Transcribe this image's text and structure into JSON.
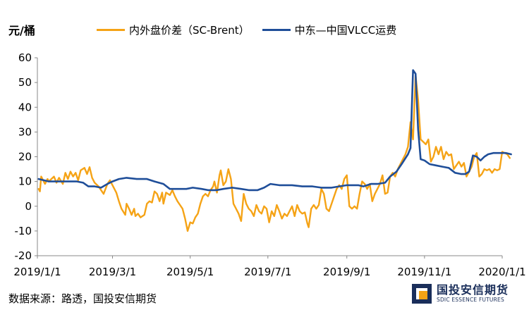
{
  "chart_data": {
    "type": "line",
    "unit_label": "元/桶",
    "ylim": [
      -20,
      60
    ],
    "yticks": [
      "-20",
      "-10",
      "0",
      "10",
      "20",
      "30",
      "40",
      "50",
      "60"
    ],
    "xlim": [
      "2019-01-01",
      "2020-01-01"
    ],
    "xticks": [
      {
        "date": "2019-01-01",
        "label": "2019/1/1"
      },
      {
        "date": "2019-03-01",
        "label": "2019/3/1"
      },
      {
        "date": "2019-05-01",
        "label": "2019/5/1"
      },
      {
        "date": "2019-07-01",
        "label": "2019/7/1"
      },
      {
        "date": "2019-09-01",
        "label": "2019/9/1"
      },
      {
        "date": "2019-11-01",
        "label": "2019/11/1"
      },
      {
        "date": "2020-01-01",
        "label": "2020/1/1"
      }
    ],
    "grid": false,
    "legend_position": "top",
    "series": [
      {
        "name": "内外盘价差（SC-Brent）",
        "color": "#F5A316",
        "points": [
          [
            "2019-01-02",
            7.0
          ],
          [
            "2019-01-03",
            6.0
          ],
          [
            "2019-01-04",
            12.0
          ],
          [
            "2019-01-07",
            9.0
          ],
          [
            "2019-01-09",
            11.0
          ],
          [
            "2019-01-10",
            10.0
          ],
          [
            "2019-01-14",
            12.0
          ],
          [
            "2019-01-16",
            9.5
          ],
          [
            "2019-01-18",
            11.5
          ],
          [
            "2019-01-21",
            9.0
          ],
          [
            "2019-01-23",
            13.5
          ],
          [
            "2019-01-25",
            11.0
          ],
          [
            "2019-01-27",
            14.0
          ],
          [
            "2019-01-29",
            12.0
          ],
          [
            "2019-01-31",
            13.5
          ],
          [
            "2019-02-02",
            10.5
          ],
          [
            "2019-02-04",
            14.5
          ],
          [
            "2019-02-07",
            15.5
          ],
          [
            "2019-02-09",
            13.0
          ],
          [
            "2019-02-11",
            15.8
          ],
          [
            "2019-02-13",
            11.5
          ],
          [
            "2019-02-15",
            9.5
          ],
          [
            "2019-02-18",
            8.0
          ],
          [
            "2019-02-20",
            6.5
          ],
          [
            "2019-02-22",
            5.0
          ],
          [
            "2019-02-25",
            9.0
          ],
          [
            "2019-02-27",
            10.5
          ],
          [
            "2019-03-01",
            8.5
          ],
          [
            "2019-03-04",
            5.5
          ],
          [
            "2019-03-06",
            2.0
          ],
          [
            "2019-03-08",
            -1.0
          ],
          [
            "2019-03-11",
            -3.5
          ],
          [
            "2019-03-12",
            1.0
          ],
          [
            "2019-03-14",
            -1.0
          ],
          [
            "2019-03-16",
            -3.5
          ],
          [
            "2019-03-18",
            -1.0
          ],
          [
            "2019-03-19",
            -4.0
          ],
          [
            "2019-03-21",
            -3.0
          ],
          [
            "2019-03-23",
            -4.5
          ],
          [
            "2019-03-26",
            -3.5
          ],
          [
            "2019-03-28",
            1.0
          ],
          [
            "2019-03-30",
            2.0
          ],
          [
            "2019-04-01",
            1.5
          ],
          [
            "2019-04-03",
            6.0
          ],
          [
            "2019-04-05",
            5.0
          ],
          [
            "2019-04-07",
            2.0
          ],
          [
            "2019-04-09",
            5.5
          ],
          [
            "2019-04-10",
            1.0
          ],
          [
            "2019-04-12",
            5.5
          ],
          [
            "2019-04-15",
            4.5
          ],
          [
            "2019-04-17",
            6.5
          ],
          [
            "2019-04-19",
            4.0
          ],
          [
            "2019-04-21",
            2.0
          ],
          [
            "2019-04-23",
            0.5
          ],
          [
            "2019-04-25",
            -1.0
          ],
          [
            "2019-04-27",
            -5.0
          ],
          [
            "2019-04-29",
            -10.0
          ],
          [
            "2019-05-01",
            -6.5
          ],
          [
            "2019-05-03",
            -7.0
          ],
          [
            "2019-05-05",
            -4.5
          ],
          [
            "2019-05-07",
            -3.0
          ],
          [
            "2019-05-09",
            1.0
          ],
          [
            "2019-05-11",
            4.0
          ],
          [
            "2019-05-13",
            5.0
          ],
          [
            "2019-05-15",
            4.0
          ],
          [
            "2019-05-17",
            6.5
          ],
          [
            "2019-05-19",
            8.0
          ],
          [
            "2019-05-20",
            10.0
          ],
          [
            "2019-05-22",
            5.5
          ],
          [
            "2019-05-24",
            12.5
          ],
          [
            "2019-05-25",
            14.5
          ],
          [
            "2019-05-27",
            8.5
          ],
          [
            "2019-05-29",
            10.0
          ],
          [
            "2019-05-31",
            15.0
          ],
          [
            "2019-06-02",
            11.0
          ],
          [
            "2019-06-04",
            1.0
          ],
          [
            "2019-06-06",
            -1.0
          ],
          [
            "2019-06-08",
            -3.0
          ],
          [
            "2019-06-10",
            -6.0
          ],
          [
            "2019-06-12",
            5.0
          ],
          [
            "2019-06-14",
            1.0
          ],
          [
            "2019-06-16",
            -1.0
          ],
          [
            "2019-06-18",
            -2.0
          ],
          [
            "2019-06-20",
            -4.0
          ],
          [
            "2019-06-22",
            0.5
          ],
          [
            "2019-06-24",
            -2.0
          ],
          [
            "2019-06-26",
            -3.0
          ],
          [
            "2019-06-28",
            0.0
          ],
          [
            "2019-06-30",
            -1.0
          ],
          [
            "2019-07-02",
            -6.5
          ],
          [
            "2019-07-04",
            -2.0
          ],
          [
            "2019-07-06",
            -4.0
          ],
          [
            "2019-07-08",
            0.5
          ],
          [
            "2019-07-10",
            -2.0
          ],
          [
            "2019-07-12",
            -5.0
          ],
          [
            "2019-07-14",
            -3.0
          ],
          [
            "2019-07-16",
            -4.0
          ],
          [
            "2019-07-18",
            -2.0
          ],
          [
            "2019-07-20",
            0.0
          ],
          [
            "2019-07-22",
            -4.0
          ],
          [
            "2019-07-24",
            0.5
          ],
          [
            "2019-07-26",
            -2.0
          ],
          [
            "2019-07-28",
            -3.0
          ],
          [
            "2019-07-30",
            -2.5
          ],
          [
            "2019-08-01",
            -7.0
          ],
          [
            "2019-08-02",
            -8.5
          ],
          [
            "2019-08-04",
            -1.0
          ],
          [
            "2019-08-06",
            0.5
          ],
          [
            "2019-08-08",
            -1.0
          ],
          [
            "2019-08-10",
            0.5
          ],
          [
            "2019-08-12",
            7.0
          ],
          [
            "2019-08-14",
            5.0
          ],
          [
            "2019-08-16",
            -1.0
          ],
          [
            "2019-08-18",
            -2.0
          ],
          [
            "2019-08-20",
            1.0
          ],
          [
            "2019-08-22",
            4.0
          ],
          [
            "2019-08-24",
            7.0
          ],
          [
            "2019-08-26",
            8.5
          ],
          [
            "2019-08-28",
            7.0
          ],
          [
            "2019-08-30",
            11.0
          ],
          [
            "2019-09-01",
            12.5
          ],
          [
            "2019-09-03",
            0.0
          ],
          [
            "2019-09-05",
            -1.0
          ],
          [
            "2019-09-07",
            0.0
          ],
          [
            "2019-09-09",
            -1.0
          ],
          [
            "2019-09-11",
            5.0
          ],
          [
            "2019-09-13",
            10.0
          ],
          [
            "2019-09-15",
            9.0
          ],
          [
            "2019-09-17",
            7.0
          ],
          [
            "2019-09-19",
            9.0
          ],
          [
            "2019-09-21",
            2.0
          ],
          [
            "2019-09-23",
            5.0
          ],
          [
            "2019-09-25",
            7.0
          ],
          [
            "2019-09-27",
            9.0
          ],
          [
            "2019-09-29",
            12.5
          ],
          [
            "2019-10-01",
            5.0
          ],
          [
            "2019-10-03",
            5.5
          ],
          [
            "2019-10-05",
            12.0
          ],
          [
            "2019-10-07",
            13.5
          ],
          [
            "2019-10-09",
            12.0
          ],
          [
            "2019-10-11",
            15.0
          ],
          [
            "2019-10-13",
            17.0
          ],
          [
            "2019-10-15",
            19.0
          ],
          [
            "2019-10-17",
            21.0
          ],
          [
            "2019-10-19",
            24.0
          ],
          [
            "2019-10-21",
            34.0
          ],
          [
            "2019-10-23",
            27.0
          ],
          [
            "2019-10-25",
            53.0
          ],
          [
            "2019-10-27",
            43.0
          ],
          [
            "2019-10-29",
            27.0
          ],
          [
            "2019-10-31",
            26.0
          ],
          [
            "2019-11-02",
            25.0
          ],
          [
            "2019-11-04",
            27.0
          ],
          [
            "2019-11-06",
            18.0
          ],
          [
            "2019-11-08",
            20.0
          ],
          [
            "2019-11-10",
            24.0
          ],
          [
            "2019-11-12",
            21.0
          ],
          [
            "2019-11-14",
            24.0
          ],
          [
            "2019-11-16",
            19.0
          ],
          [
            "2019-11-18",
            22.0
          ],
          [
            "2019-11-20",
            20.5
          ],
          [
            "2019-11-22",
            21.0
          ],
          [
            "2019-11-24",
            15.0
          ],
          [
            "2019-11-26",
            16.5
          ],
          [
            "2019-11-28",
            18.0
          ],
          [
            "2019-11-30",
            16.0
          ],
          [
            "2019-12-02",
            17.5
          ],
          [
            "2019-12-04",
            12.0
          ],
          [
            "2019-12-06",
            14.0
          ],
          [
            "2019-12-08",
            16.0
          ],
          [
            "2019-12-10",
            20.0
          ],
          [
            "2019-12-12",
            21.5
          ],
          [
            "2019-12-14",
            12.0
          ],
          [
            "2019-12-16",
            13.0
          ],
          [
            "2019-12-18",
            15.0
          ],
          [
            "2019-12-20",
            14.5
          ],
          [
            "2019-12-22",
            15.0
          ],
          [
            "2019-12-24",
            13.5
          ],
          [
            "2019-12-26",
            15.0
          ],
          [
            "2019-12-28",
            14.5
          ],
          [
            "2019-12-30",
            15.0
          ],
          [
            "2020-01-01",
            22.0
          ],
          [
            "2020-01-03",
            21.5
          ],
          [
            "2020-01-05",
            21.0
          ],
          [
            "2020-01-07",
            19.5
          ]
        ]
      },
      {
        "name": "中东—中国VLCC运费",
        "color": "#1F4E99",
        "points": [
          [
            "2019-01-02",
            11.0
          ],
          [
            "2019-01-06",
            10.5
          ],
          [
            "2019-01-10",
            10.0
          ],
          [
            "2019-01-15",
            10.0
          ],
          [
            "2019-01-20",
            10.0
          ],
          [
            "2019-01-25",
            10.0
          ],
          [
            "2019-02-01",
            10.0
          ],
          [
            "2019-02-06",
            9.5
          ],
          [
            "2019-02-10",
            8.0
          ],
          [
            "2019-02-15",
            8.0
          ],
          [
            "2019-02-20",
            7.5
          ],
          [
            "2019-02-25",
            9.0
          ],
          [
            "2019-03-01",
            10.0
          ],
          [
            "2019-03-06",
            11.0
          ],
          [
            "2019-03-12",
            11.5
          ],
          [
            "2019-03-20",
            11.0
          ],
          [
            "2019-03-28",
            11.0
          ],
          [
            "2019-04-03",
            10.0
          ],
          [
            "2019-04-10",
            9.0
          ],
          [
            "2019-04-15",
            7.0
          ],
          [
            "2019-04-20",
            7.0
          ],
          [
            "2019-04-28",
            7.0
          ],
          [
            "2019-05-03",
            7.5
          ],
          [
            "2019-05-10",
            7.0
          ],
          [
            "2019-05-15",
            6.5
          ],
          [
            "2019-05-22",
            6.5
          ],
          [
            "2019-05-27",
            7.0
          ],
          [
            "2019-06-03",
            7.5
          ],
          [
            "2019-06-10",
            7.0
          ],
          [
            "2019-06-16",
            6.5
          ],
          [
            "2019-06-23",
            6.5
          ],
          [
            "2019-06-28",
            7.5
          ],
          [
            "2019-07-03",
            9.0
          ],
          [
            "2019-07-10",
            8.5
          ],
          [
            "2019-07-20",
            8.5
          ],
          [
            "2019-07-28",
            8.0
          ],
          [
            "2019-08-05",
            8.0
          ],
          [
            "2019-08-12",
            7.5
          ],
          [
            "2019-08-20",
            7.5
          ],
          [
            "2019-08-26",
            8.0
          ],
          [
            "2019-09-01",
            8.5
          ],
          [
            "2019-09-06",
            8.5
          ],
          [
            "2019-09-10",
            8.5
          ],
          [
            "2019-09-14",
            8.0
          ],
          [
            "2019-09-20",
            9.0
          ],
          [
            "2019-09-25",
            9.0
          ],
          [
            "2019-10-01",
            9.5
          ],
          [
            "2019-10-05",
            12.0
          ],
          [
            "2019-10-10",
            14.0
          ],
          [
            "2019-10-14",
            17.0
          ],
          [
            "2019-10-19",
            21.0
          ],
          [
            "2019-10-21",
            23.5
          ],
          [
            "2019-10-23",
            55.0
          ],
          [
            "2019-10-25",
            53.5
          ],
          [
            "2019-10-27",
            31.0
          ],
          [
            "2019-10-29",
            19.0
          ],
          [
            "2019-11-01",
            18.5
          ],
          [
            "2019-11-05",
            17.0
          ],
          [
            "2019-11-10",
            16.5
          ],
          [
            "2019-11-15",
            16.0
          ],
          [
            "2019-11-20",
            15.5
          ],
          [
            "2019-11-25",
            13.5
          ],
          [
            "2019-11-30",
            13.0
          ],
          [
            "2019-12-03",
            13.0
          ],
          [
            "2019-12-06",
            14.0
          ],
          [
            "2019-12-09",
            20.5
          ],
          [
            "2019-12-12",
            20.0
          ],
          [
            "2019-12-15",
            18.5
          ],
          [
            "2019-12-18",
            20.0
          ],
          [
            "2019-12-21",
            21.0
          ],
          [
            "2019-12-25",
            21.5
          ],
          [
            "2019-12-30",
            21.5
          ],
          [
            "2020-01-04",
            21.5
          ],
          [
            "2020-01-08",
            21.0
          ]
        ]
      }
    ]
  },
  "source_text": "数据来源：路透，国投安信期货",
  "logo": {
    "name_cn": "国投安信期货",
    "name_en": "SDIC ESSENCE FUTURES",
    "color": "#1A2E5A",
    "accent_color": "#F5A316"
  }
}
